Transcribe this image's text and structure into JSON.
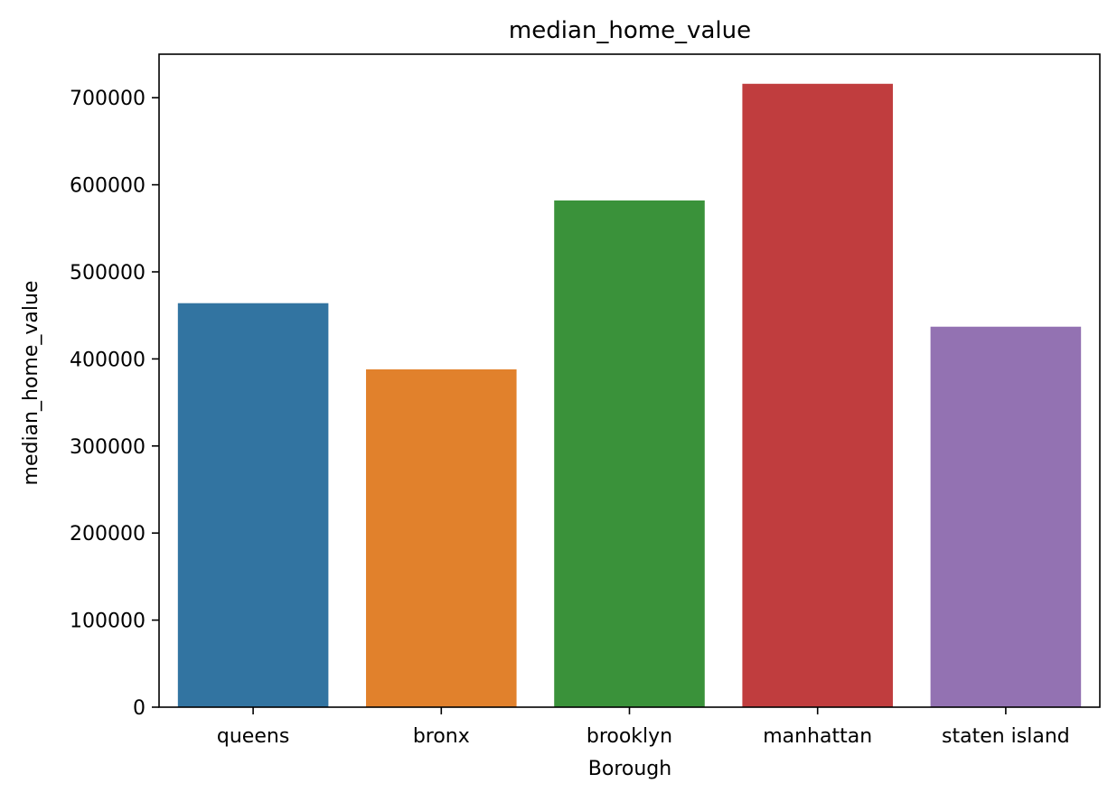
{
  "chart_data": {
    "type": "bar",
    "title": "median_home_value",
    "xlabel": "Borough",
    "ylabel": "median_home_value",
    "categories": [
      "queens",
      "bronx",
      "brooklyn",
      "manhattan",
      "staten island"
    ],
    "values": [
      464000,
      388000,
      582000,
      716000,
      437000
    ],
    "colors": [
      "#3274a1",
      "#e1812c",
      "#3a923a",
      "#c03d3e",
      "#9372b2"
    ],
    "ylim": [
      0,
      750000
    ],
    "yticks": [
      0,
      100000,
      200000,
      300000,
      400000,
      500000,
      600000,
      700000
    ],
    "ytick_labels": [
      "0",
      "100000",
      "200000",
      "300000",
      "400000",
      "500000",
      "600000",
      "700000"
    ],
    "grid": false,
    "legend": "none"
  }
}
